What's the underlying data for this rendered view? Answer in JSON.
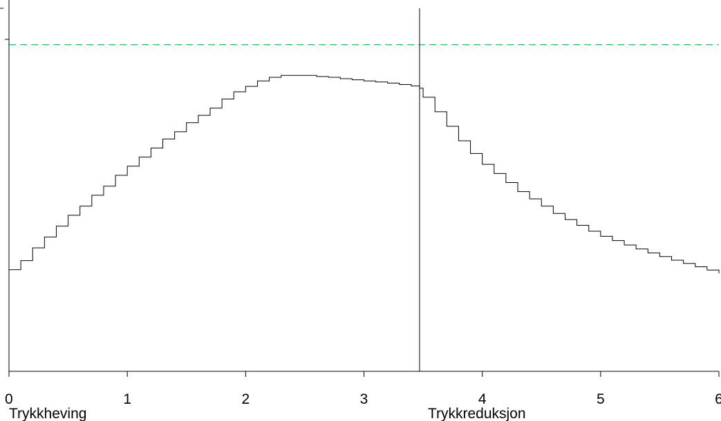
{
  "chart_data": {
    "type": "line",
    "title": "",
    "xlabel": "",
    "ylabel": "",
    "xlim": [
      0,
      6
    ],
    "ylim": [
      0,
      1
    ],
    "x_ticks": [
      "0",
      "1",
      "2",
      "3",
      "4",
      "5",
      "6"
    ],
    "x_tick_values": [
      0,
      1,
      2,
      3,
      4,
      5,
      6
    ],
    "grid": false,
    "step_line": true,
    "line_color": "#000000",
    "reference_line": {
      "y": 0.9,
      "color": "#22c55e",
      "style": "dashed"
    },
    "phase_divider": {
      "x": 3.47,
      "color": "#000000"
    },
    "phase_labels": [
      {
        "text": "Trykkheving",
        "x": 0.0
      },
      {
        "text": "Trykkreduksjon",
        "x": 3.47
      }
    ],
    "series": [
      {
        "x": [
          0.0,
          0.1,
          0.2,
          0.3,
          0.4,
          0.5,
          0.6,
          0.7,
          0.8,
          0.9,
          1.0,
          1.1,
          1.2,
          1.3,
          1.4,
          1.5,
          1.6,
          1.7,
          1.8,
          1.9,
          2.0,
          2.1,
          2.2,
          2.3,
          2.4,
          2.5,
          2.6,
          2.7,
          2.8,
          2.9,
          3.0,
          3.1,
          3.2,
          3.3,
          3.4,
          3.47,
          3.5,
          3.6,
          3.7,
          3.8,
          3.9,
          4.0,
          4.1,
          4.2,
          4.3,
          4.4,
          4.5,
          4.6,
          4.7,
          4.8,
          4.9,
          5.0,
          5.1,
          5.2,
          5.3,
          5.4,
          5.5,
          5.6,
          5.7,
          5.8,
          5.9,
          6.0
        ],
        "y": [
          0.28,
          0.305,
          0.34,
          0.37,
          0.4,
          0.43,
          0.455,
          0.485,
          0.51,
          0.54,
          0.565,
          0.59,
          0.615,
          0.64,
          0.66,
          0.685,
          0.705,
          0.725,
          0.75,
          0.77,
          0.785,
          0.8,
          0.81,
          0.815,
          0.815,
          0.815,
          0.812,
          0.81,
          0.806,
          0.803,
          0.8,
          0.797,
          0.794,
          0.79,
          0.786,
          0.78,
          0.755,
          0.715,
          0.675,
          0.635,
          0.6,
          0.57,
          0.545,
          0.52,
          0.495,
          0.475,
          0.455,
          0.435,
          0.418,
          0.402,
          0.386,
          0.372,
          0.36,
          0.348,
          0.337,
          0.326,
          0.316,
          0.306,
          0.297,
          0.288,
          0.279,
          0.27
        ]
      }
    ]
  }
}
